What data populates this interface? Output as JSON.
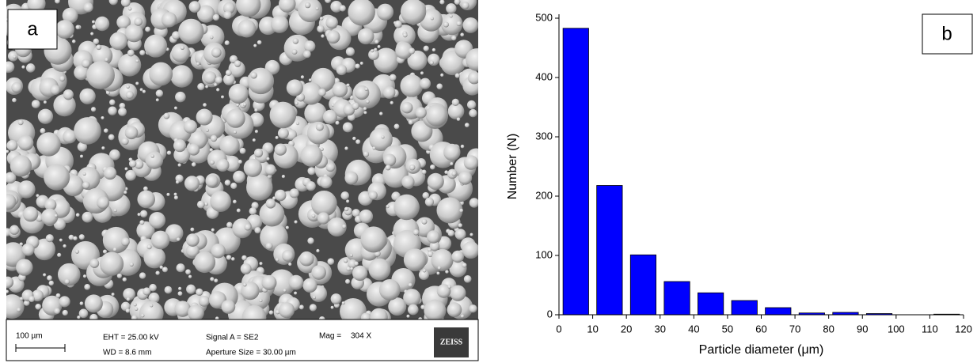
{
  "image_panel": {
    "panel_label": "a",
    "scale_bar": "100 µm",
    "eht": "EHT = 25.00 kV",
    "wd": "WD = 8.6 mm",
    "signal": "Signal A = SE2",
    "aperture": "Aperture Size = 30.00 µm",
    "mag_label": "Mag =",
    "mag_value": "304 X",
    "logo": "ZEISS"
  },
  "chart_data": {
    "type": "histogram",
    "panel_label": "b",
    "x_label": "Particle diameter (μm)",
    "y_label": "Number (N)",
    "bins": [
      0,
      10,
      20,
      30,
      40,
      50,
      60,
      70,
      80,
      90,
      100,
      110,
      120
    ],
    "values": [
      483,
      218,
      101,
      56,
      37,
      24,
      12,
      3,
      4,
      2,
      0,
      1
    ],
    "color": "#0000ff",
    "xlim": [
      0,
      120
    ],
    "ylim": [
      0,
      500
    ],
    "xticks": [
      0,
      10,
      20,
      30,
      40,
      50,
      60,
      70,
      80,
      90,
      100,
      110,
      120
    ],
    "yticks": [
      0,
      100,
      200,
      300,
      400,
      500
    ]
  }
}
